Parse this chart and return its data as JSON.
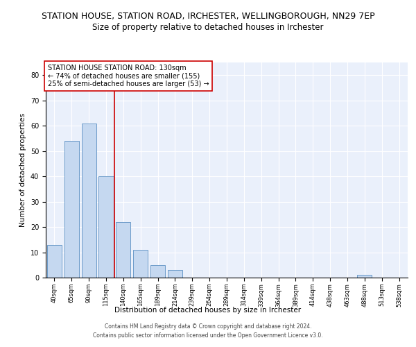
{
  "title": "STATION HOUSE, STATION ROAD, IRCHESTER, WELLINGBOROUGH, NN29 7EP",
  "subtitle": "Size of property relative to detached houses in Irchester",
  "xlabel": "Distribution of detached houses by size in Irchester",
  "ylabel": "Number of detached properties",
  "categories": [
    "40sqm",
    "65sqm",
    "90sqm",
    "115sqm",
    "140sqm",
    "165sqm",
    "189sqm",
    "214sqm",
    "239sqm",
    "264sqm",
    "289sqm",
    "314sqm",
    "339sqm",
    "364sqm",
    "389sqm",
    "414sqm",
    "438sqm",
    "463sqm",
    "488sqm",
    "513sqm",
    "538sqm"
  ],
  "values": [
    13,
    54,
    61,
    40,
    22,
    11,
    5,
    3,
    0,
    0,
    0,
    0,
    0,
    0,
    0,
    0,
    0,
    0,
    1,
    0,
    0
  ],
  "bar_color": "#c5d8f0",
  "bar_edge_color": "#5a8fc2",
  "vline_color": "#cc0000",
  "ylim": [
    0,
    85
  ],
  "yticks": [
    0,
    10,
    20,
    30,
    40,
    50,
    60,
    70,
    80
  ],
  "annotation_text_line1": "STATION HOUSE STATION ROAD: 130sqm",
  "annotation_text_line2": "← 74% of detached houses are smaller (155)",
  "annotation_text_line3": "25% of semi-detached houses are larger (53) →",
  "footer_line1": "Contains HM Land Registry data © Crown copyright and database right 2024.",
  "footer_line2": "Contains public sector information licensed under the Open Government Licence v3.0.",
  "bg_color": "#eaf0fb",
  "title_fontsize": 9,
  "subtitle_fontsize": 8.5,
  "annotation_fontsize": 7,
  "axis_label_fontsize": 7.5,
  "footer_fontsize": 5.5
}
